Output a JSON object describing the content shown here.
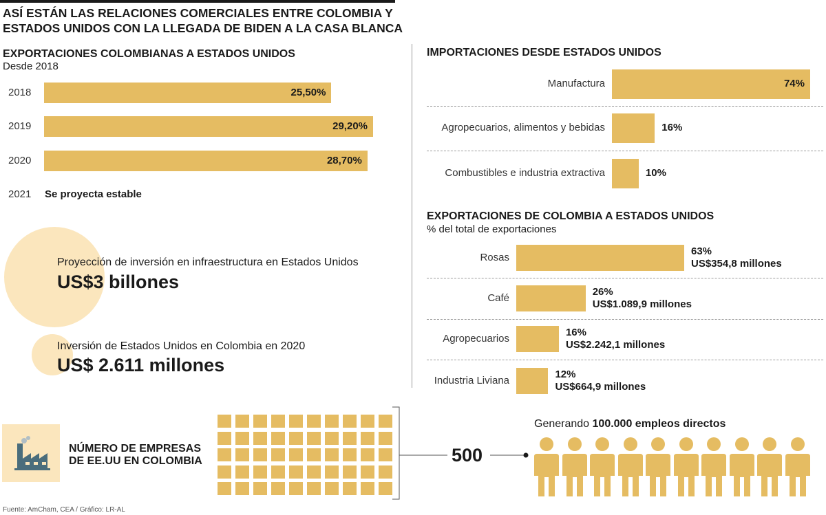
{
  "title": "ASÍ ESTÁN LAS RELACIONES COMERCIALES ENTRE COLOMBIA Y ESTADOS UNIDOS CON LA LLEGADA DE BIDEN A LA CASA BLANCA",
  "colors": {
    "bar": "#e5bc62",
    "circle": "#fbe6bd",
    "text": "#1a1a1a"
  },
  "chart_data": [
    {
      "type": "bar",
      "title": "EXPORTACIONES COLOMBIANAS A ESTADOS UNIDOS",
      "subtitle": "Desde 2018",
      "categories": [
        "2018",
        "2019",
        "2020"
      ],
      "values": [
        25.5,
        29.2,
        28.7
      ],
      "value_labels": [
        "25,50%",
        "29,20%",
        "28,70%"
      ],
      "extra_category": "2021",
      "extra_note": "Se proyecta estable"
    },
    {
      "type": "bar",
      "title": "IMPORTACIONES DESDE ESTADOS UNIDOS",
      "categories": [
        "Manufactura",
        "Agropecuarios, alimentos y bebidas",
        "Combustibles e industria extractiva"
      ],
      "values": [
        74,
        16,
        10
      ],
      "value_labels": [
        "74%",
        "16%",
        "10%"
      ]
    },
    {
      "type": "bar",
      "title": "EXPORTACIONES DE COLOMBIA A ESTADOS UNIDOS",
      "subtitle": "% del total de exportaciones",
      "categories": [
        "Rosas",
        "Café",
        "Agropecuarios",
        "Industria Liviana"
      ],
      "values": [
        63,
        26,
        16,
        12
      ],
      "value_labels": [
        "63%",
        "26%",
        "16%",
        "12%"
      ],
      "amount_labels": [
        "US$354,8 millones",
        "US$1.089,9 millones",
        "US$2.242,1 millones",
        "US$664,9 millones"
      ]
    }
  ],
  "investment": {
    "infra_label": "Proyección de inversión en infraestructura en Estados Unidos",
    "infra_value": "US$3 billones",
    "colombia_label": "Inversión de Estados Unidos en Colombia en 2020",
    "colombia_value": "US$ 2.611 millones"
  },
  "companies": {
    "label_line1": "NÚMERO DE EMPRESAS",
    "label_line2": "DE EE.UU EN COLOMBIA",
    "count": "500",
    "grid_rows": 5,
    "grid_cols": 10,
    "icon": "factory-icon"
  },
  "jobs": {
    "prefix": "Generando ",
    "value": "100.000 empleos directos",
    "people_count": 10,
    "icon": "person-icon"
  },
  "footer": "Fuente: AmCham, CEA / Gráfico: LR-AL"
}
